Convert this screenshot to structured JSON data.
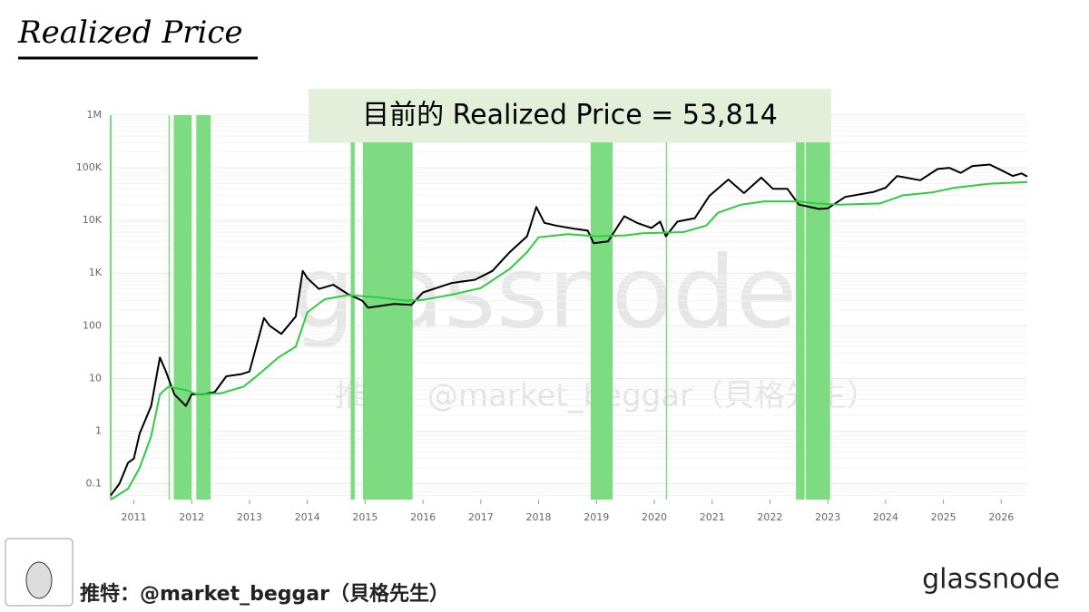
{
  "header": {
    "title": "Realized Price"
  },
  "footer": {
    "credit": "推特：@market_beggar（貝格先生）",
    "logo": "glassnode"
  },
  "chart_data": {
    "type": "line",
    "log_y": true,
    "grid": true,
    "annotation": "目前的 Realized Price = 53,814",
    "watermark": "glassnode",
    "watermark_credit": "推特：@market_beggar（貝格先生）",
    "xlim": [
      2010.6,
      2026.45
    ],
    "xticks": [
      2011,
      2012,
      2013,
      2014,
      2015,
      2016,
      2017,
      2018,
      2019,
      2020,
      2021,
      2022,
      2023,
      2024,
      2025,
      2026
    ],
    "ylim": [
      0.05,
      1000000
    ],
    "yticks": [
      0.1,
      1,
      10,
      100,
      {
        "value": 1000,
        "label": "1K"
      },
      {
        "value": 10000,
        "label": "10K"
      },
      {
        "value": 100000,
        "label": "100K"
      },
      {
        "value": 1000000,
        "label": "1M"
      }
    ],
    "zone_color": "#7ddc82",
    "zones": [
      [
        2011.6,
        2011.62
      ],
      [
        2011.69,
        2012.0
      ],
      [
        2012.08,
        2012.33
      ],
      [
        2014.75,
        2014.82
      ],
      [
        2014.96,
        2015.82
      ],
      [
        2018.9,
        2019.28
      ],
      [
        2020.2,
        2020.22
      ],
      [
        2022.45,
        2022.6
      ],
      [
        2022.62,
        2023.04
      ]
    ],
    "series": [
      {
        "color": "#000000",
        "x": [
          2010.6,
          2010.75,
          2010.9,
          2011.0,
          2011.1,
          2011.3,
          2011.45,
          2011.55,
          2011.7,
          2011.9,
          2012.0,
          2012.2,
          2012.4,
          2012.6,
          2012.85,
          2013.0,
          2013.25,
          2013.35,
          2013.55,
          2013.8,
          2013.92,
          2014.0,
          2014.2,
          2014.45,
          2014.7,
          2014.95,
          2015.05,
          2015.5,
          2015.8,
          2016.0,
          2016.5,
          2016.9,
          2017.2,
          2017.5,
          2017.8,
          2017.96,
          2018.1,
          2018.3,
          2018.6,
          2018.85,
          2018.95,
          2019.2,
          2019.48,
          2019.7,
          2019.95,
          2020.1,
          2020.2,
          2020.4,
          2020.7,
          2020.95,
          2021.28,
          2021.55,
          2021.85,
          2022.05,
          2022.3,
          2022.5,
          2022.85,
          2023.0,
          2023.3,
          2023.8,
          2024.0,
          2024.2,
          2024.6,
          2024.9,
          2025.1,
          2025.3,
          2025.5,
          2025.8,
          2026.0,
          2026.2,
          2026.35,
          2026.45
        ],
        "values": [
          0.06,
          0.1,
          0.25,
          0.3,
          0.9,
          3,
          25,
          14,
          5,
          3,
          5,
          5,
          5.5,
          11,
          12,
          13.5,
          140,
          100,
          70,
          150,
          1100,
          800,
          500,
          600,
          400,
          300,
          220,
          260,
          250,
          430,
          650,
          750,
          1100,
          2500,
          5000,
          18000,
          9000,
          8000,
          7000,
          6400,
          3700,
          4000,
          12000,
          9000,
          7200,
          9500,
          5000,
          9500,
          11000,
          29000,
          60000,
          33000,
          65000,
          40000,
          40000,
          20000,
          16500,
          17000,
          28000,
          35000,
          42000,
          70000,
          58000,
          95000,
          100000,
          80000,
          108000,
          115000,
          90000,
          70000,
          78000,
          68000
        ]
      },
      {
        "color": "#2ecc40",
        "x": [
          2010.6,
          2010.9,
          2011.1,
          2011.3,
          2011.45,
          2011.6,
          2011.9,
          2012.1,
          2012.5,
          2012.9,
          2013.2,
          2013.5,
          2013.8,
          2014.0,
          2014.3,
          2014.7,
          2015.2,
          2015.7,
          2016.0,
          2016.5,
          2017.0,
          2017.5,
          2017.8,
          2018.0,
          2018.5,
          2019.0,
          2019.5,
          2019.8,
          2020.5,
          2020.9,
          2021.1,
          2021.5,
          2021.9,
          2022.5,
          2022.8,
          2023.2,
          2023.9,
          2024.3,
          2024.8,
          2025.2,
          2025.8,
          2026.45
        ],
        "values": [
          0.05,
          0.08,
          0.2,
          0.8,
          5,
          7,
          6,
          5,
          5.2,
          7,
          13,
          25,
          40,
          180,
          320,
          380,
          350,
          300,
          310,
          390,
          520,
          1200,
          2500,
          4800,
          5500,
          5000,
          5200,
          5700,
          6000,
          8000,
          14000,
          20000,
          23000,
          23000,
          21000,
          20000,
          21000,
          30000,
          34000,
          42000,
          50000,
          53814
        ]
      }
    ]
  }
}
